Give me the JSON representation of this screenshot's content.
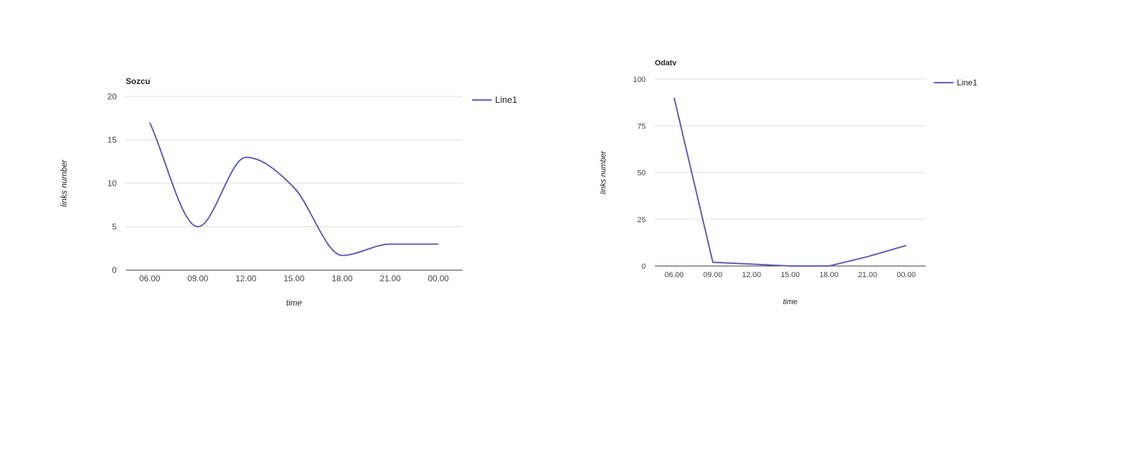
{
  "chart_data": [
    {
      "type": "line",
      "title": "Sozcu",
      "xlabel": "time",
      "ylabel": "links number",
      "categories": [
        "06.00",
        "09.00",
        "12.00",
        "15.00",
        "18.00",
        "21.00",
        "00.00"
      ],
      "series": [
        {
          "name": "Line1",
          "values": [
            17,
            5,
            13,
            9.5,
            1.7,
            3,
            3
          ],
          "color": "#5c5bb4"
        }
      ],
      "ylim": [
        0,
        20
      ],
      "yticks": [
        0,
        5,
        10,
        15,
        20
      ],
      "smooth": true,
      "grid": true,
      "legend": "right"
    },
    {
      "type": "line",
      "title": "Odatv",
      "xlabel": "time",
      "ylabel": "links number",
      "categories": [
        "06.00",
        "09.00",
        "12.00",
        "15.00",
        "18.00",
        "21.00",
        "00.00"
      ],
      "series": [
        {
          "name": "Line1",
          "values": [
            90,
            2,
            1,
            0,
            0,
            5,
            11
          ],
          "color": "#5c5bb4"
        }
      ],
      "ylim": [
        0,
        100
      ],
      "yticks": [
        0,
        25,
        50,
        75,
        100
      ],
      "smooth": false,
      "grid": true,
      "legend": "right"
    }
  ]
}
